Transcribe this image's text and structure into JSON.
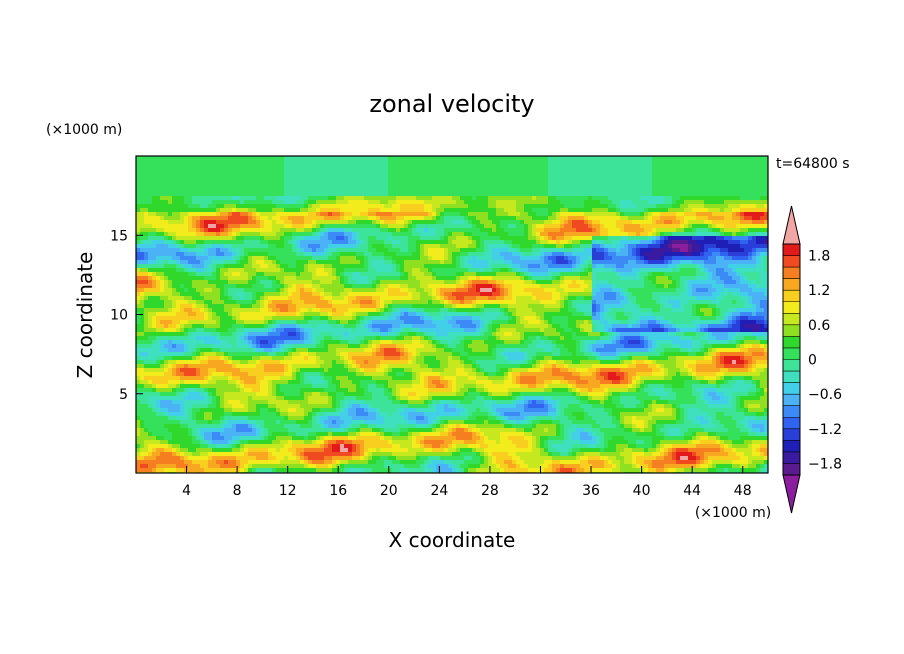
{
  "chart_data": {
    "type": "heatmap",
    "title": "zonal velocity",
    "xlabel": "X coordinate",
    "ylabel": "Z coordinate",
    "x_unit": "(×1000 m)",
    "y_unit": "(×1000 m)",
    "time_label": "t=64800 s",
    "xlim": [
      0,
      50
    ],
    "ylim": [
      0,
      20
    ],
    "x_ticks": [
      4,
      8,
      12,
      16,
      20,
      24,
      28,
      32,
      36,
      40,
      44,
      48
    ],
    "y_ticks": [
      5,
      10,
      15
    ],
    "colorbar": {
      "min": -2.0,
      "max": 2.0,
      "step": 0.2,
      "extend": "both",
      "tick_values": [
        1.8,
        1.2,
        0.6,
        0,
        -0.6,
        -1.2,
        -1.8
      ],
      "tick_labels": [
        "1.8",
        "1.2",
        "0.6",
        "0",
        "−0.6",
        "−1.2",
        "−1.8"
      ],
      "colors": [
        "#5a1b8f",
        "#3a1aa0",
        "#1f1fb8",
        "#2a3fd8",
        "#2f63f0",
        "#3c8af5",
        "#4ab2f5",
        "#42d0e8",
        "#3fe0c0",
        "#3ee39a",
        "#35e05a",
        "#2fd82a",
        "#8ee020",
        "#c6e81e",
        "#f2ec1c",
        "#f8cf1e",
        "#f8a820",
        "#f57f20",
        "#f04a20",
        "#e21a1a"
      ],
      "under_color": "#8a1e9e",
      "over_color": "#f2a5a5"
    },
    "grid": false
  }
}
